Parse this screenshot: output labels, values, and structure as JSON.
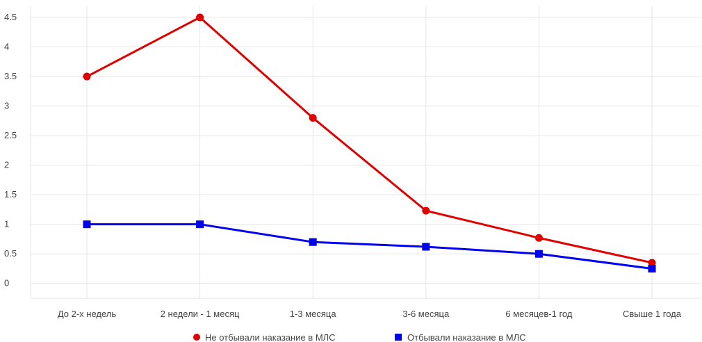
{
  "chart_data": {
    "type": "line",
    "categories": [
      "До 2-х недель",
      "2 недели - 1 месяц",
      "1-3 месяца",
      "3-6 месяца",
      "6 месяцев-1 год",
      "Свыше 1 года"
    ],
    "y_ticks": [
      "0",
      "0.5",
      "1",
      "1.5",
      "2",
      "2.5",
      "3",
      "3.5",
      "4",
      "4.5"
    ],
    "ylim": [
      -0.25,
      4.7
    ],
    "grid": true,
    "legend_position": "bottom",
    "series": [
      {
        "name": "Не отбывали наказание в МЛС",
        "values": [
          3.5,
          4.5,
          2.8,
          1.23,
          0.77,
          0.35
        ],
        "color": "#e00000",
        "marker": "circle"
      },
      {
        "name": "Отбывали наказание в МЛС",
        "values": [
          1.0,
          1.0,
          0.7,
          0.62,
          0.5,
          0.25
        ],
        "color": "#0000ee",
        "marker": "square"
      }
    ]
  }
}
